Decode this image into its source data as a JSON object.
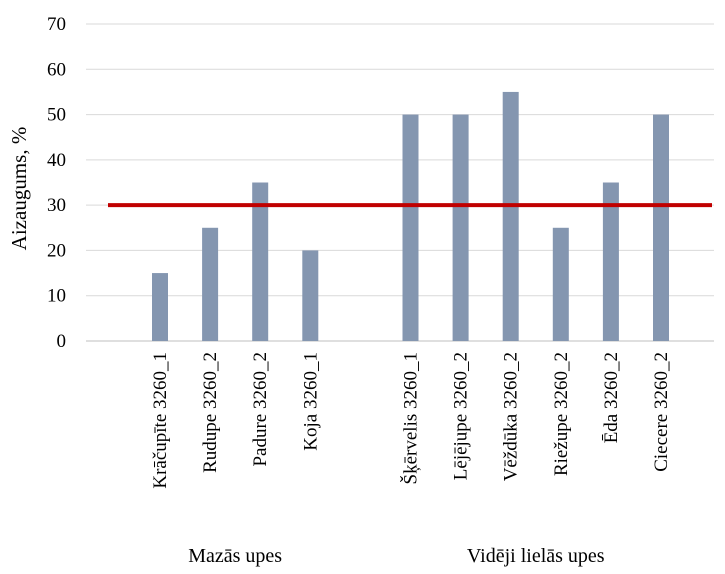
{
  "chart_data": {
    "type": "bar",
    "ylabel": "Aizaugums, %",
    "ylim": [
      0,
      70
    ],
    "yticks": [
      0,
      10,
      20,
      30,
      40,
      50,
      60,
      70
    ],
    "grid": true,
    "categories": [
      "Krāčupīte 3260_1",
      "Rudupe 3260_2",
      "Padure 3260_2",
      "Koja 3260_1",
      "",
      "Šķērvelis 3260_1",
      "Lējējupe 3260_2",
      "Vēždūka 3260_2",
      "Riežupe 3260_2",
      "Ēda 3260_2",
      "Ciecere 3260_2"
    ],
    "values": [
      15,
      25,
      35,
      20,
      null,
      50,
      50,
      55,
      25,
      35,
      50
    ],
    "groups": [
      {
        "label": "Mazās upes",
        "start": 0,
        "end": 3
      },
      {
        "label": "Vidēji lielās upes",
        "start": 5,
        "end": 10
      }
    ],
    "threshold": {
      "value": 30,
      "color": "#c00000"
    },
    "bar_color": "#8496b0"
  }
}
